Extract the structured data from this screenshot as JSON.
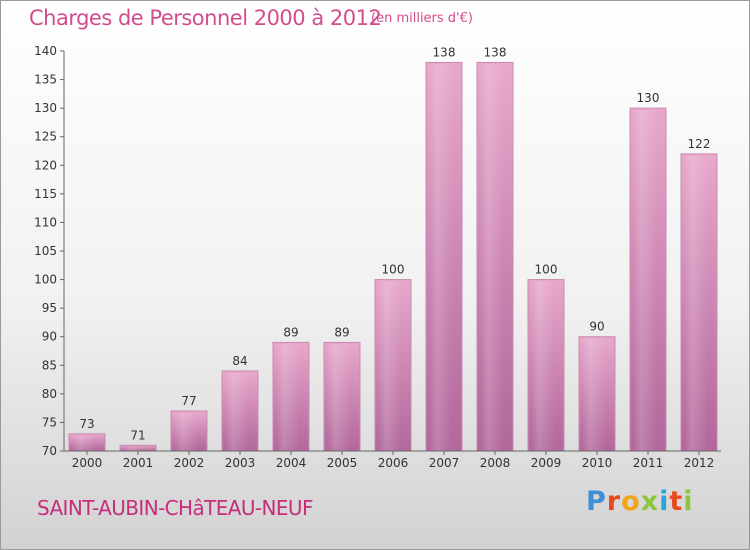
{
  "header": {
    "title": "Charges de Personnel 2000 à 2012",
    "subtitle": "(en milliers d'€)"
  },
  "footer": {
    "place": "SAINT-AUBIN-CHâTEAU-NEUF",
    "logo": "Proxiti",
    "logo_colors": [
      "#3d8fd4",
      "#e8491d",
      "#f2a51a",
      "#8cc63f",
      "#2fa3d9",
      "#e8491d",
      "#8cc63f"
    ]
  },
  "chart_data": {
    "type": "bar",
    "title": "Charges de Personnel 2000 à 2012",
    "subtitle": "(en milliers d'€)",
    "categories": [
      "2000",
      "2001",
      "2002",
      "2003",
      "2004",
      "2005",
      "2006",
      "2007",
      "2008",
      "2009",
      "2010",
      "2011",
      "2012"
    ],
    "values": [
      73,
      71,
      77,
      84,
      89,
      89,
      100,
      138,
      138,
      100,
      90,
      130,
      122
    ],
    "ylim": [
      70,
      140
    ],
    "yticks": [
      70,
      75,
      80,
      85,
      90,
      95,
      100,
      105,
      110,
      115,
      120,
      125,
      130,
      135,
      140
    ],
    "grid": false,
    "bar_color": "#dd94bd",
    "bar_color_dark": "#b5679a"
  }
}
